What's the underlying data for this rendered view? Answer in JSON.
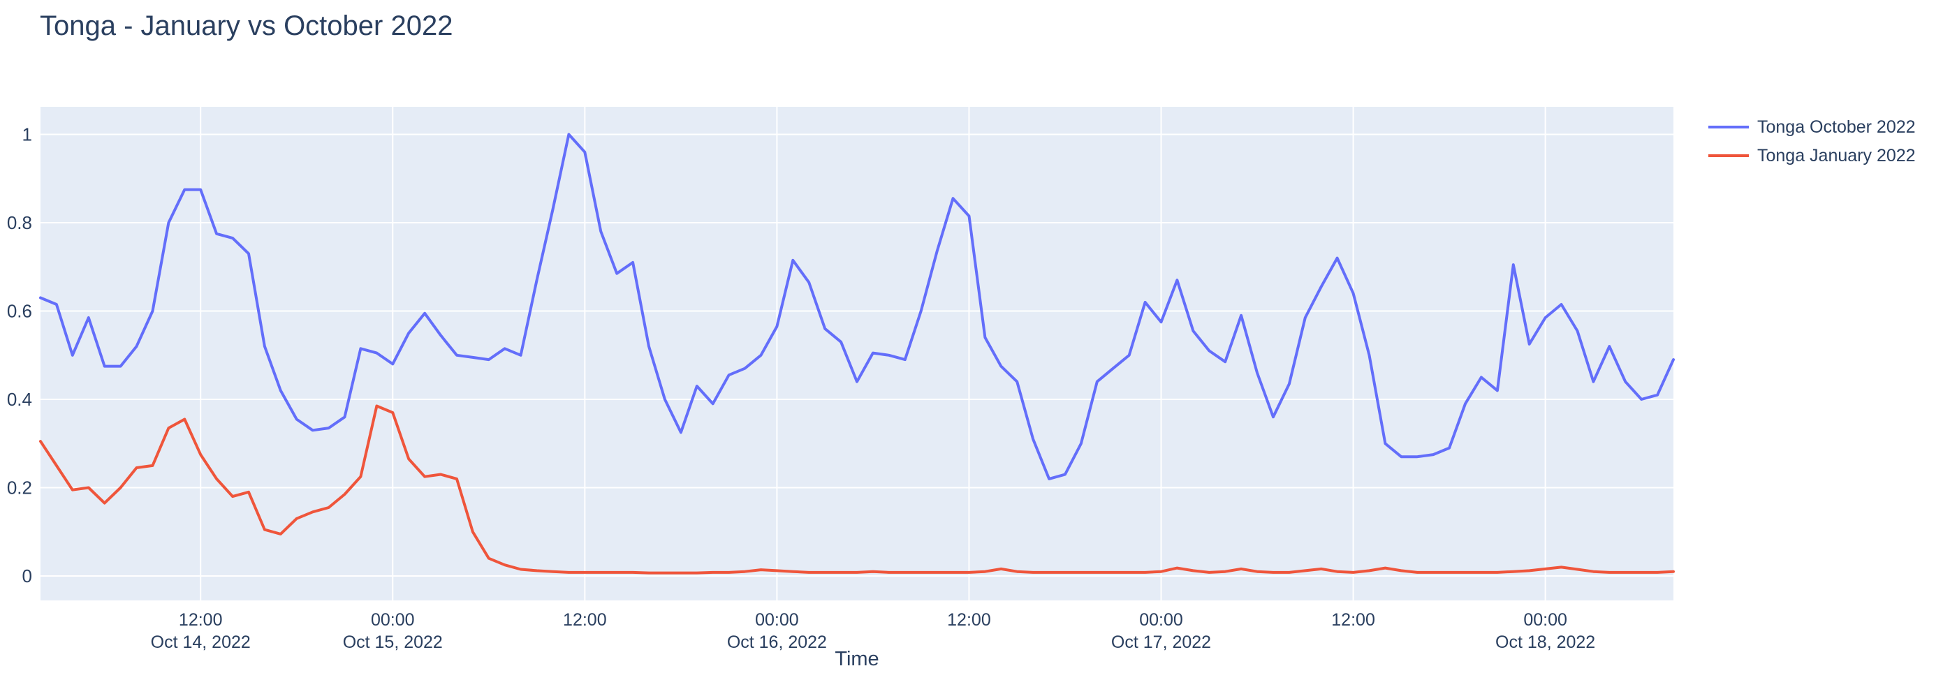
{
  "title": "Tonga - January vs October 2022",
  "axis": {
    "x_title": "Time",
    "y_ticks": [
      0,
      0.2,
      0.4,
      0.6,
      0.8,
      1
    ]
  },
  "colors": {
    "plot_background": "#e5ecf6",
    "gridline": "#ffffff",
    "text": "#2a3f5f",
    "series_october": "#636efa",
    "series_january": "#ef553b"
  },
  "legend": {
    "items": [
      {
        "label": "Tonga October 2022",
        "color": "#636efa"
      },
      {
        "label": "Tonga January 2022",
        "color": "#ef553b"
      }
    ]
  },
  "chart_data": {
    "type": "line",
    "title": "Tonga - January vs October 2022",
    "xlabel": "Time",
    "ylabel": "",
    "ylim": [
      0,
      1
    ],
    "grid": true,
    "legend_position": "right-top-outside",
    "x_start": "2022-10-14 02:00",
    "x_step_hours": 1,
    "n_points": 103,
    "x_ticks": [
      {
        "i": 10,
        "time": "12:00",
        "date": "Oct 14, 2022"
      },
      {
        "i": 22,
        "time": "00:00",
        "date": "Oct 15, 2022"
      },
      {
        "i": 34,
        "time": "12:00"
      },
      {
        "i": 46,
        "time": "00:00",
        "date": "Oct 16, 2022"
      },
      {
        "i": 58,
        "time": "12:00"
      },
      {
        "i": 70,
        "time": "00:00",
        "date": "Oct 17, 2022"
      },
      {
        "i": 82,
        "time": "12:00"
      },
      {
        "i": 94,
        "time": "00:00",
        "date": "Oct 18, 2022"
      }
    ],
    "series": [
      {
        "name": "Tonga October 2022",
        "color": "#636efa",
        "values": [
          0.63,
          0.615,
          0.5,
          0.585,
          0.475,
          0.475,
          0.52,
          0.6,
          0.8,
          0.875,
          0.875,
          0.775,
          0.765,
          0.73,
          0.52,
          0.42,
          0.355,
          0.33,
          0.335,
          0.36,
          0.515,
          0.505,
          0.48,
          0.55,
          0.595,
          0.545,
          0.5,
          0.495,
          0.49,
          0.515,
          0.5,
          0.67,
          0.83,
          1.0,
          0.96,
          0.78,
          0.685,
          0.71,
          0.52,
          0.4,
          0.325,
          0.43,
          0.39,
          0.455,
          0.47,
          0.5,
          0.565,
          0.715,
          0.665,
          0.56,
          0.53,
          0.44,
          0.505,
          0.5,
          0.49,
          0.6,
          0.735,
          0.855,
          0.815,
          0.54,
          0.475,
          0.44,
          0.31,
          0.22,
          0.23,
          0.3,
          0.44,
          0.47,
          0.5,
          0.62,
          0.575,
          0.67,
          0.555,
          0.51,
          0.485,
          0.59,
          0.46,
          0.36,
          0.435,
          0.585,
          0.655,
          0.72,
          0.64,
          0.5,
          0.3,
          0.27,
          0.27,
          0.275,
          0.29,
          0.39,
          0.45,
          0.42,
          0.705,
          0.525,
          0.585,
          0.615,
          0.555,
          0.44,
          0.52,
          0.44,
          0.4,
          0.41,
          0.49
        ]
      },
      {
        "name": "Tonga January 2022",
        "color": "#ef553b",
        "values": [
          0.305,
          0.25,
          0.195,
          0.2,
          0.165,
          0.2,
          0.245,
          0.25,
          0.335,
          0.355,
          0.275,
          0.22,
          0.18,
          0.19,
          0.105,
          0.095,
          0.13,
          0.145,
          0.155,
          0.185,
          0.225,
          0.385,
          0.37,
          0.265,
          0.225,
          0.23,
          0.22,
          0.1,
          0.04,
          0.025,
          0.015,
          0.012,
          0.01,
          0.008,
          0.008,
          0.008,
          0.008,
          0.008,
          0.007,
          0.007,
          0.007,
          0.007,
          0.008,
          0.008,
          0.01,
          0.014,
          0.012,
          0.01,
          0.008,
          0.008,
          0.008,
          0.008,
          0.01,
          0.008,
          0.008,
          0.008,
          0.008,
          0.008,
          0.008,
          0.01,
          0.016,
          0.01,
          0.008,
          0.008,
          0.008,
          0.008,
          0.008,
          0.008,
          0.008,
          0.008,
          0.01,
          0.018,
          0.012,
          0.008,
          0.01,
          0.016,
          0.01,
          0.008,
          0.008,
          0.012,
          0.016,
          0.01,
          0.008,
          0.012,
          0.018,
          0.012,
          0.008,
          0.008,
          0.008,
          0.008,
          0.008,
          0.008,
          0.01,
          0.012,
          0.016,
          0.02,
          0.015,
          0.01,
          0.008,
          0.008,
          0.008,
          0.008,
          0.01
        ]
      }
    ]
  }
}
